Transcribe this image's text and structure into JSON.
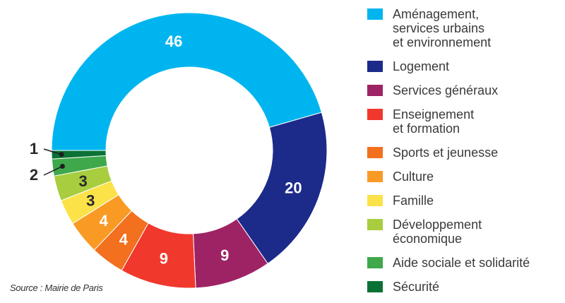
{
  "chart_data": {
    "type": "pie",
    "variant": "donut",
    "title": "",
    "values": [
      46,
      20,
      9,
      9,
      4,
      4,
      3,
      3,
      2,
      1
    ],
    "colors": [
      "#00b5ef",
      "#1c2a8a",
      "#9e2365",
      "#f0382d",
      "#f2701e",
      "#f99a25",
      "#fbe249",
      "#a8cd3e",
      "#3ea84b",
      "#0b7235"
    ],
    "legend_placement": "right",
    "legend": [
      "Aménagement,\nservices urbains\net environnement",
      "Logement",
      "Services généraux",
      "Enseignement\net formation",
      "Sports et jeunesse",
      "Culture",
      "Famille",
      "Développement\néconomique",
      "Aide sociale et solidarité",
      "Sécurité"
    ]
  },
  "source": "Source : Mairie de Paris"
}
